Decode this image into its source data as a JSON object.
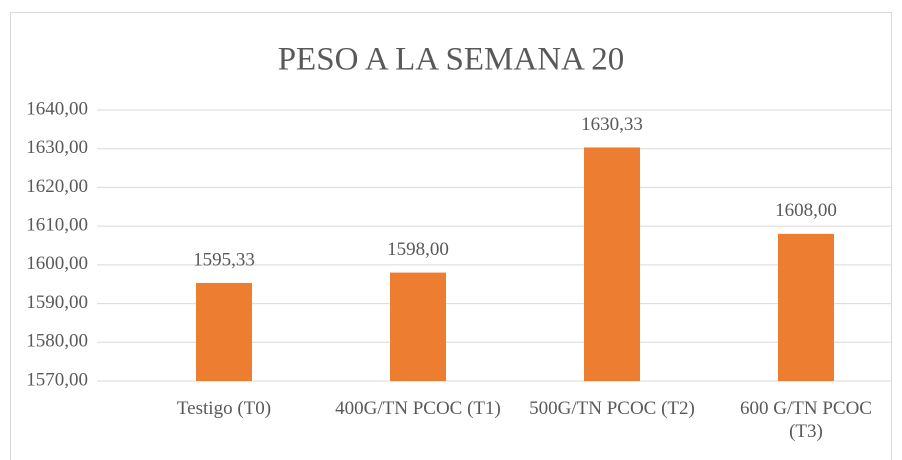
{
  "chart_data": {
    "type": "bar",
    "title": "PESO A LA SEMANA 20",
    "categories": [
      "Testigo (T0)",
      "400G/TN PCOC (T1)",
      "500G/TN PCOC (T2)",
      "600 G/TN PCOC (T3)"
    ],
    "values": [
      1595.33,
      1598,
      1630.33,
      1608
    ],
    "value_labels": [
      "1595,33",
      "1598,00",
      "1630,33",
      "1608,00"
    ],
    "color": "#ed7d31",
    "ylim": [
      1570,
      1640
    ],
    "yticks": [
      {
        "value": 1570,
        "label": "1570,00"
      },
      {
        "value": 1580,
        "label": "1580,00"
      },
      {
        "value": 1590,
        "label": "1590,00"
      },
      {
        "value": 1600,
        "label": "1600,00"
      },
      {
        "value": 1610,
        "label": "1610,00"
      },
      {
        "value": 1620,
        "label": "1620,00"
      },
      {
        "value": 1630,
        "label": "1630,00"
      },
      {
        "value": 1640,
        "label": "1640,00"
      }
    ],
    "grid": true
  }
}
